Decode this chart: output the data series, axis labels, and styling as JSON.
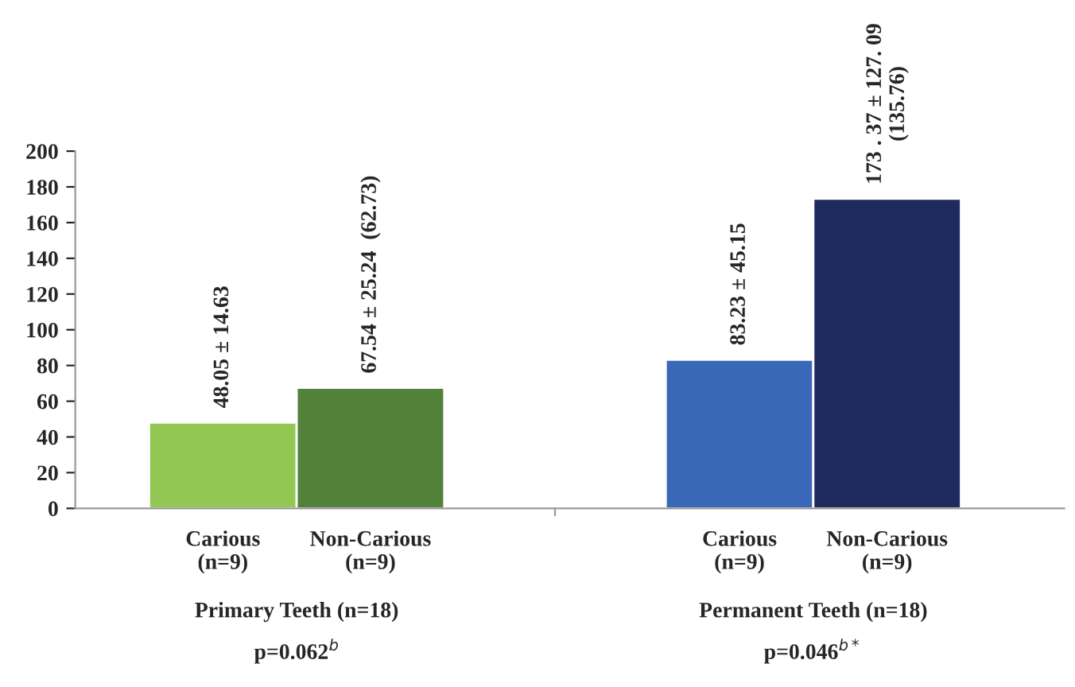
{
  "chart_data": {
    "type": "bar",
    "categories": [
      "Carious\n(n=9)",
      "Non-Carious\n(n=9)",
      "Carious\n(n=9)",
      "Non-Carious\n(n=9)"
    ],
    "values": [
      48.05,
      67.54,
      83.23,
      173.37
    ],
    "colors": [
      "#92c853",
      "#528139",
      "#3a68b8",
      "#1f2a5e"
    ],
    "value_labels": [
      "48.05 ± 14.63",
      "67.54 ± 25.24  (62.73)",
      "83.23 ± 45.15",
      "173 . 37 ± 127. 09\n(135.76)"
    ],
    "ylim": [
      0,
      200
    ],
    "yticks": [
      0,
      20,
      40,
      60,
      80,
      100,
      120,
      140,
      160,
      180,
      200
    ],
    "grid": false,
    "legend": false,
    "annotations": [
      "Primary Teeth (n=18)",
      "Permanent Teeth (n=18)",
      "p=0.062$^{b}$",
      "p=0.046$^{b*}$"
    ]
  }
}
